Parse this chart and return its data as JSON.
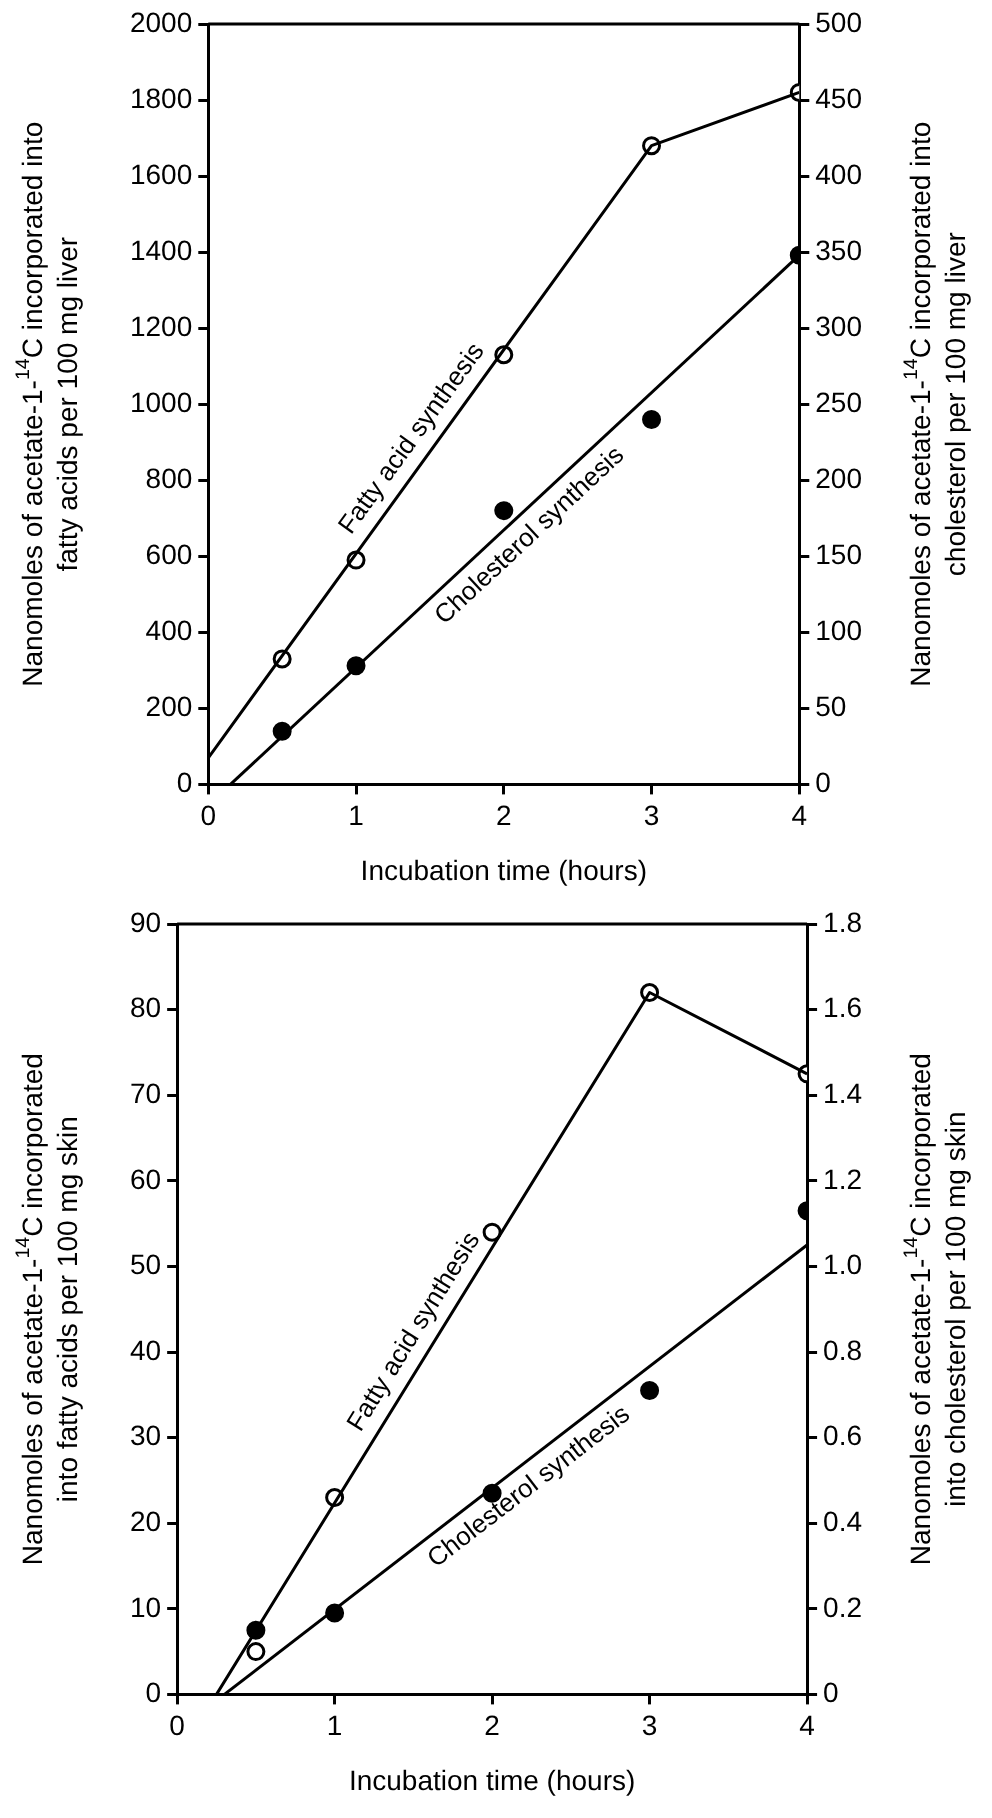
{
  "chart_data": [
    {
      "type": "scatter",
      "xlabel": "Incubation time (hours)",
      "ylabel": "Nanomoles of acetate-1-$^{14}$C incorporated into\nfatty acids per 100 mg liver",
      "y2label": "Nanomoles of acetate-1-$^{14}$C incorporated into\ncholesterol per 100 mg liver",
      "xlim": [
        0,
        4
      ],
      "xticks": [
        0,
        1,
        2,
        3,
        4
      ],
      "ylim": [
        0,
        2000
      ],
      "yticks": [
        0,
        200,
        400,
        600,
        800,
        1000,
        1200,
        1400,
        1600,
        1800,
        2000
      ],
      "y2lim": [
        0,
        500
      ],
      "y2ticks": [
        0,
        50,
        100,
        150,
        200,
        250,
        300,
        350,
        400,
        450,
        500
      ],
      "grid": false,
      "legend": false,
      "series": [
        {
          "type": "line",
          "color": "#000000",
          "marker": "none",
          "x": [
            0,
            3,
            4
          ],
          "values": [
            70,
            1680,
            1820
          ]
        },
        {
          "name": "Fatty acid synthesis",
          "color": "#ffffff",
          "marker": "circle",
          "x": [
            0.5,
            1,
            2,
            3,
            4
          ],
          "values": [
            330,
            590,
            1130,
            1680,
            1820
          ]
        },
        {
          "type": "line",
          "color": "#000000",
          "marker": "none",
          "axis": "y2",
          "x": [
            0.15,
            4
          ],
          "values": [
            0,
            348
          ]
        },
        {
          "name": "Cholesterol synthesis",
          "color": "#000000",
          "marker": "circle",
          "axis": "y2",
          "x": [
            0.5,
            1,
            2,
            3,
            4
          ],
          "values": [
            35,
            78,
            180,
            240,
            348
          ]
        }
      ]
    },
    {
      "type": "scatter",
      "xlabel": "Incubation time (hours)",
      "ylabel": "Nanomoles of acetate-1-$^{14}$C incorporated\ninto fatty acids per 100 mg skin",
      "y2label": "Nanomoles of acetate-1-$^{14}$C incorporated\ninto cholesterol per 100 mg skin",
      "xlim": [
        0,
        4
      ],
      "xticks": [
        0,
        1,
        2,
        3,
        4
      ],
      "ylim": [
        0,
        90
      ],
      "yticks": [
        0,
        10,
        20,
        30,
        40,
        50,
        60,
        70,
        80,
        90
      ],
      "y2lim": [
        0,
        1.8
      ],
      "y2ticks": [
        {
          "value": 0,
          "label": "0"
        },
        {
          "value": 0.2,
          "label": "0.2"
        },
        {
          "value": 0.4,
          "label": "0.4"
        },
        {
          "value": 0.6,
          "label": "0.6"
        },
        {
          "value": 0.8,
          "label": "0.8"
        },
        {
          "value": 1,
          "label": "1.0"
        },
        {
          "value": 1.2,
          "label": "1.2"
        },
        {
          "value": 1.4,
          "label": "1.4"
        },
        {
          "value": 1.6,
          "label": "1.6"
        },
        {
          "value": 1.8,
          "label": "1.8"
        }
      ],
      "grid": false,
      "legend": false,
      "series": [
        {
          "type": "line",
          "color": "#000000",
          "marker": "none",
          "x": [
            0.25,
            3,
            4
          ],
          "values": [
            0,
            82,
            72.5
          ]
        },
        {
          "name": "Fatty acid synthesis",
          "color": "#ffffff",
          "marker": "circle",
          "x": [
            0.5,
            1,
            2,
            3,
            4
          ],
          "values": [
            5,
            23,
            54,
            82,
            72.5
          ]
        },
        {
          "type": "line",
          "color": "#000000",
          "marker": "none",
          "axis": "y2",
          "x": [
            0.3,
            4
          ],
          "values": [
            0,
            1.05
          ]
        },
        {
          "name": "Cholesterol synthesis",
          "color": "#000000",
          "marker": "circle",
          "axis": "y2",
          "x": [
            0.5,
            1,
            2,
            3,
            4
          ],
          "values": [
            0.15,
            0.19,
            0.47,
            0.71,
            1.13
          ]
        }
      ]
    }
  ]
}
